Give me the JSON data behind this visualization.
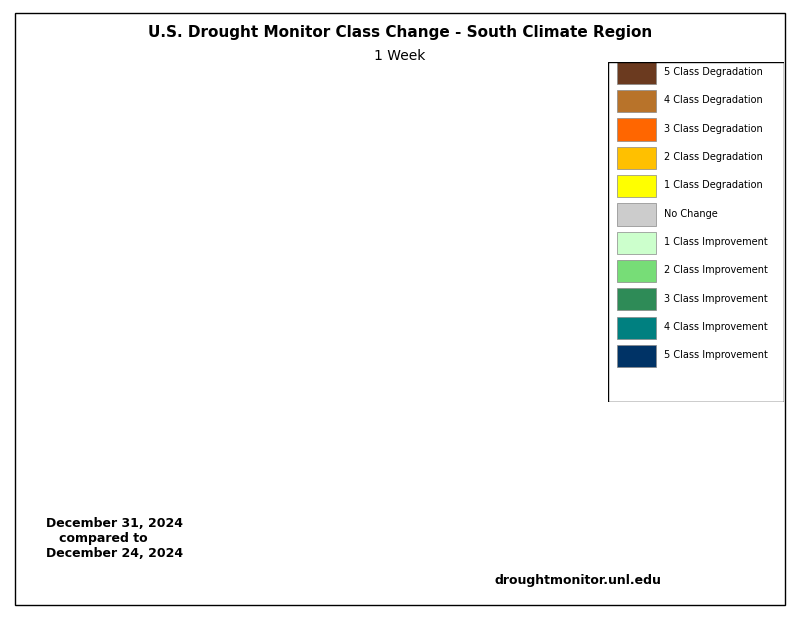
{
  "title_line1": "U.S. Drought Monitor Class Change - South Climate Region",
  "title_line2": "1 Week",
  "date_text": "December 31, 2024\n   compared to\nDecember 24, 2024",
  "website_text": "droughtmonitor.unl.edu",
  "legend_entries": [
    {
      "label": "5 Class Degradation",
      "color": "#6b3a1f"
    },
    {
      "label": "4 Class Degradation",
      "color": "#b8732a"
    },
    {
      "label": "3 Class Degradation",
      "color": "#ff6600"
    },
    {
      "label": "2 Class Degradation",
      "color": "#ffc000"
    },
    {
      "label": "1 Class Degradation",
      "color": "#ffff00"
    },
    {
      "label": "No Change",
      "color": "#cccccc"
    },
    {
      "label": "1 Class Improvement",
      "color": "#ccffcc"
    },
    {
      "label": "2 Class Improvement",
      "color": "#77dd77"
    },
    {
      "label": "3 Class Improvement",
      "color": "#2e8b57"
    },
    {
      "label": "4 Class Improvement",
      "color": "#008080"
    },
    {
      "label": "5 Class Improvement",
      "color": "#003366"
    }
  ],
  "background_color": "#ffffff",
  "border_color": "#000000",
  "fig_width": 8.0,
  "fig_height": 6.18
}
